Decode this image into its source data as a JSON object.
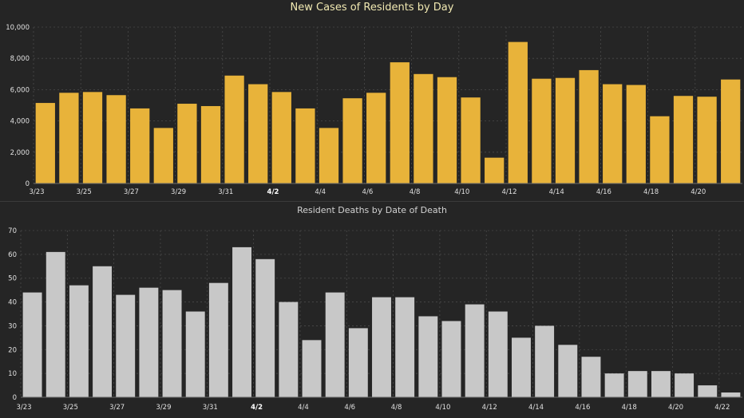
{
  "colors": {
    "background": "#252525",
    "cases_bar": "#e8b33a",
    "deaths_bar": "#c8c8c8",
    "grid": "#4a4a4a"
  },
  "chart_data": [
    {
      "type": "bar",
      "title": "New Cases of Residents by Day",
      "xlabel": "",
      "ylabel": "",
      "ylim": [
        0,
        10000
      ],
      "yticks": [
        0,
        2000,
        4000,
        6000,
        8000,
        10000
      ],
      "ytick_labels": [
        "0",
        "2,000",
        "4,000",
        "6,000",
        "8,000",
        "10,000"
      ],
      "categories": [
        "3/23",
        "3/24",
        "3/25",
        "3/26",
        "3/27",
        "3/28",
        "3/29",
        "3/30",
        "3/31",
        "4/1",
        "4/2",
        "4/3",
        "4/4",
        "4/5",
        "4/6",
        "4/7",
        "4/8",
        "4/9",
        "4/10",
        "4/11",
        "4/12",
        "4/13",
        "4/14",
        "4/15",
        "4/16",
        "4/17",
        "4/18",
        "4/19",
        "4/20",
        "4/21"
      ],
      "values": [
        5150,
        5800,
        5850,
        5650,
        4800,
        3550,
        5100,
        4950,
        6900,
        6350,
        5850,
        4800,
        3550,
        5450,
        5800,
        7750,
        7000,
        6800,
        5500,
        1650,
        9050,
        6700,
        6750,
        7250,
        6350,
        6300,
        4300,
        5600,
        5550,
        6650
      ],
      "x_tick_labels": [
        "3/23",
        "3/25",
        "3/27",
        "3/29",
        "3/31",
        "4/2",
        "4/4",
        "4/6",
        "4/8",
        "4/10",
        "4/12",
        "4/14",
        "4/16",
        "4/18",
        "4/20"
      ],
      "grid": true
    },
    {
      "type": "bar",
      "title": "Resident Deaths by Date of Death",
      "xlabel": "",
      "ylabel": "",
      "ylim": [
        0,
        70
      ],
      "yticks": [
        0,
        10,
        20,
        30,
        40,
        50,
        60,
        70
      ],
      "ytick_labels": [
        "0",
        "10",
        "20",
        "30",
        "40",
        "50",
        "60",
        "70"
      ],
      "categories": [
        "3/23",
        "3/24",
        "3/25",
        "3/26",
        "3/27",
        "3/28",
        "3/29",
        "3/30",
        "3/31",
        "4/1",
        "4/2",
        "4/3",
        "4/4",
        "4/5",
        "4/6",
        "4/7",
        "4/8",
        "4/9",
        "4/10",
        "4/11",
        "4/12",
        "4/13",
        "4/14",
        "4/15",
        "4/16",
        "4/17",
        "4/18",
        "4/19",
        "4/20",
        "4/21",
        "4/22"
      ],
      "values": [
        44,
        61,
        47,
        55,
        43,
        46,
        45,
        36,
        48,
        63,
        58,
        40,
        24,
        44,
        29,
        42,
        42,
        34,
        32,
        39,
        36,
        25,
        30,
        22,
        17,
        10,
        11,
        11,
        10,
        5,
        2
      ],
      "x_tick_labels": [
        "3/23",
        "3/25",
        "3/27",
        "3/29",
        "3/31",
        "4/2",
        "4/4",
        "4/6",
        "4/8",
        "4/10",
        "4/12",
        "4/14",
        "4/16",
        "4/18",
        "4/20",
        "4/22"
      ],
      "grid": true
    }
  ]
}
